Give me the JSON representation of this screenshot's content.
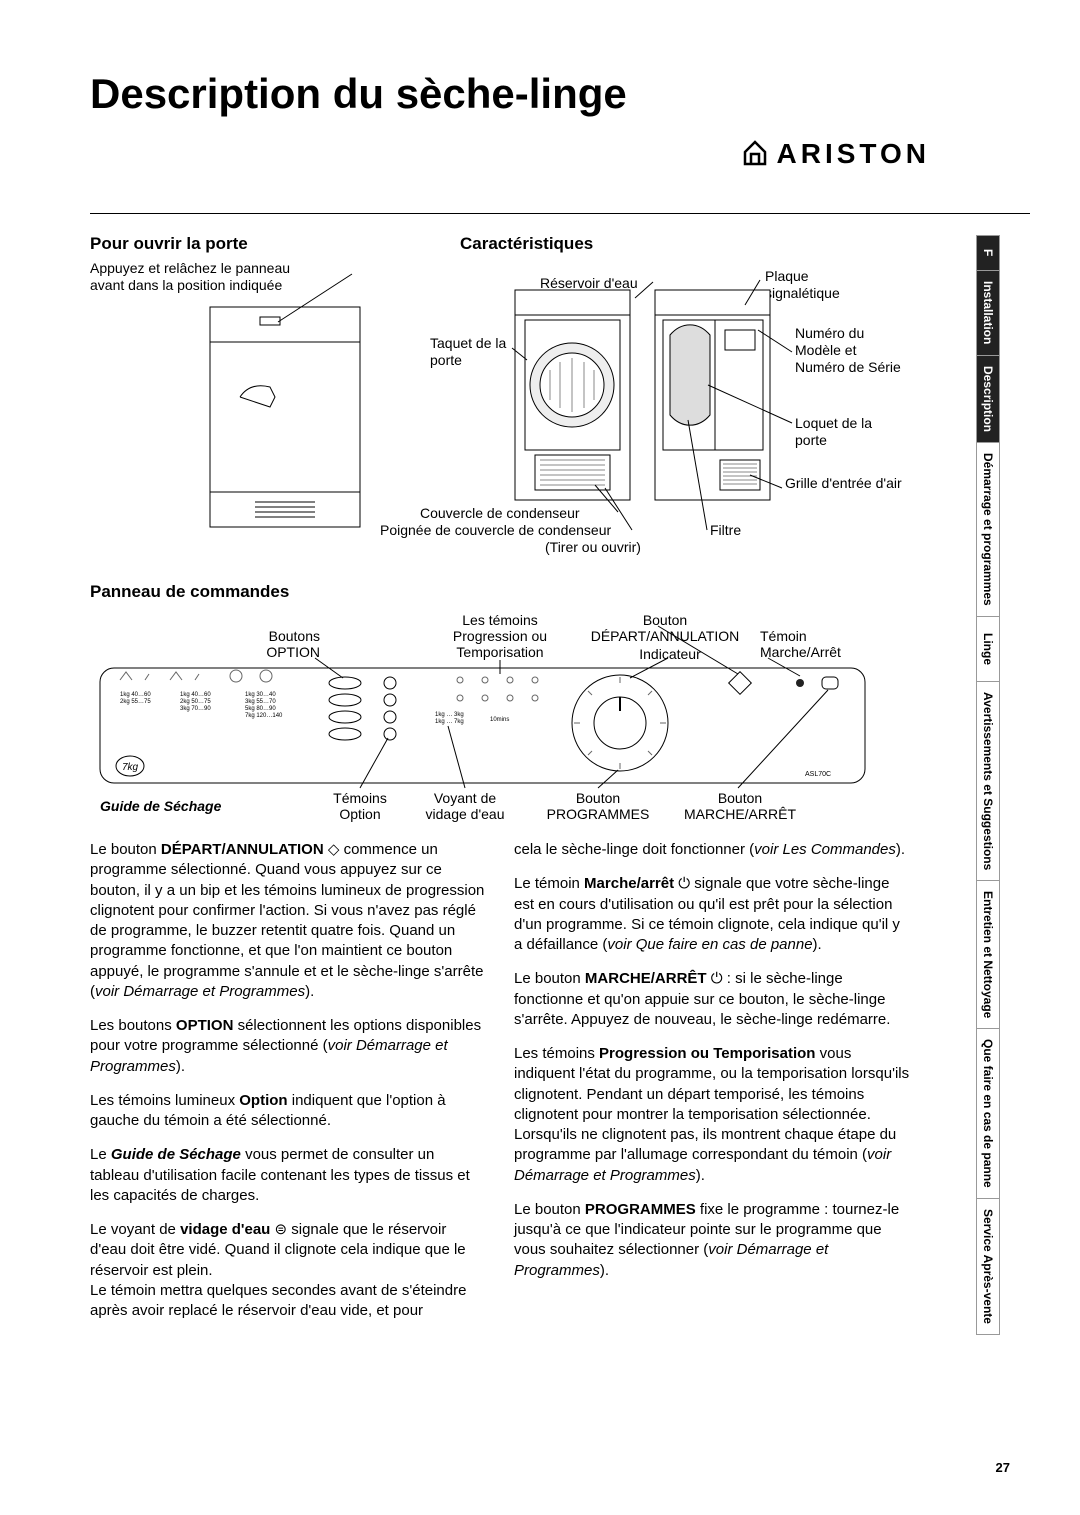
{
  "title": "Description du sèche-linge",
  "brand": "ARISTON",
  "page_number": "27",
  "tabs": [
    {
      "label": "F",
      "dark": true
    },
    {
      "label": "Installation",
      "dark": true
    },
    {
      "label": "Description",
      "dark": true
    },
    {
      "label": "Démarrage et programmes",
      "dark": false
    },
    {
      "label": "Linge",
      "dark": false
    },
    {
      "label": "Avertissements et Suggestions",
      "dark": false
    },
    {
      "label": "Entretien et Nettoyage",
      "dark": false
    },
    {
      "label": "Que faire en cas de panne",
      "dark": false
    },
    {
      "label": "Service Après-vente",
      "dark": false
    }
  ],
  "open_door": {
    "heading": "Pour ouvrir la porte",
    "text_l1": "Appuyez et relâchez le panneau",
    "text_l2": "avant dans la position indiquée"
  },
  "features": {
    "heading": "Caractéristiques",
    "reservoir": "Réservoir d'eau",
    "plaque": "Plaque signalétique",
    "taquet": "Taquet de la porte",
    "numero": "Numéro du Modèle et Numéro de Série",
    "loquet": "Loquet de la porte",
    "grille": "Grille d'entrée d'air",
    "couvercle": "Couvercle de condenseur",
    "poignee": "Poignée de couvercle de condenseur",
    "tirer": "(Tirer ou ouvrir)",
    "filtre": "Filtre"
  },
  "panel": {
    "heading": "Panneau de commandes",
    "model": "ASL70C",
    "top": {
      "boutons": "Boutons",
      "option_b": "OPTION",
      "temoins_l1": "Les témoins",
      "prog_l1": "Progression ou",
      "prog_l2": "Temporisation",
      "bouton_da": "Bouton",
      "da": "DÉPART/ANNULATION",
      "indic": "Indicateur",
      "temoin_ma": "Témoin",
      "ma": "Marche/Arrêt"
    },
    "bottom": {
      "guide": "Guide de Séchage",
      "temoins": "Témoins",
      "option": "Option",
      "voyant": "Voyant de",
      "vidage": "vidage d'eau",
      "bouton_p": "Bouton",
      "programmes": "PROGRAMMES",
      "bouton_ma": "Bouton",
      "marche_arret": "MARCHE/ARRÊT"
    },
    "labels": {
      "kg_left1": "1kg    40 … 60\n2kg    55 … 75",
      "kg_left2": "1kg    40 … 60\n2kg    50 … 75\n3kg    70 … 90",
      "kg_left3": "1kg    30 … 40\n3kg    55 … 70\n5kg    80 … 90\n7kg  120 … 140",
      "kg_right": "1kg … 3kg\n1kg … 7kg",
      "ten": "10mins"
    }
  },
  "body": {
    "left": [
      "Le bouton <strong>DÉPART/ANNULATION</strong> <span class='dia'>◇</span> commence un programme sélectionné. Quand vous appuyez sur ce bouton, il y a un bip et les témoins lumineux de progression clignotent pour confirmer l'action. Si vous n'avez pas réglé de programme, le buzzer retentit quatre fois. Quand un programme fonctionne, et que l'on maintient ce bouton appuyé, le programme s'annule et et le sèche-linge s'arrête (<em>voir Démarrage et Programmes</em>).",
      "Les boutons <strong>OPTION</strong> sélectionnent les options disponibles pour votre programme sélectionné (<em>voir Démarrage et Programmes</em>).",
      "Les témoins lumineux <strong>Option</strong> indiquent que l'option à gauche du témoin a été sélectionné.",
      "Le <span class='bi'>Guide de Séchage</span> vous permet de consulter un tableau d'utilisation facile contenant les types de tissus et les capacités de charges.",
      "Le voyant de <strong>vidage d'eau</strong> ⊜ signale que le réservoir d'eau doit être vidé. Quand il clignote cela indique que le réservoir est plein.<br>Le témoin mettra quelques secondes avant de s'éteindre après avoir replacé le réservoir d'eau vide, et pour"
    ],
    "right": [
      "cela le sèche-linge doit fonctionner (<em>voir Les Commandes</em>).",
      "Le témoin <strong>Marche/arrêt</strong> <span class='pw'>⏻</span> signale que votre sèche-linge est en cours d'utilisation ou qu'il est prêt pour la sélection d'un programme. Si ce témoin clignote, cela indique qu'il y a défaillance (<em>voir Que faire en cas de panne</em>).",
      "Le bouton <strong>MARCHE/ARRÊT</strong> <span class='pw'>⏻</span> : si le sèche-linge fonctionne et qu'on appuie sur ce bouton, le sèche-linge s'arrête. Appuyez de nouveau, le sèche-linge redémarre.",
      "Les témoins <strong>Progression ou Temporisation</strong> vous indiquent l'état du programme, ou la temporisation lorsqu'ils clignotent. Pendant un départ temporisé, les témoins clignotent pour montrer la temporisation sélectionnée. Lorsqu'ils ne clignotent pas, ils montrent chaque étape du programme par l'allumage correspondant du témoin (<em>voir Démarrage et Programmes</em>).",
      "Le bouton <strong>PROGRAMMES</strong> fixe le programme : tournez-le jusqu'à ce que l'indicateur pointe sur le programme que vous souhaitez sélectionner (<em>voir Démarrage et Programmes</em>)."
    ]
  }
}
